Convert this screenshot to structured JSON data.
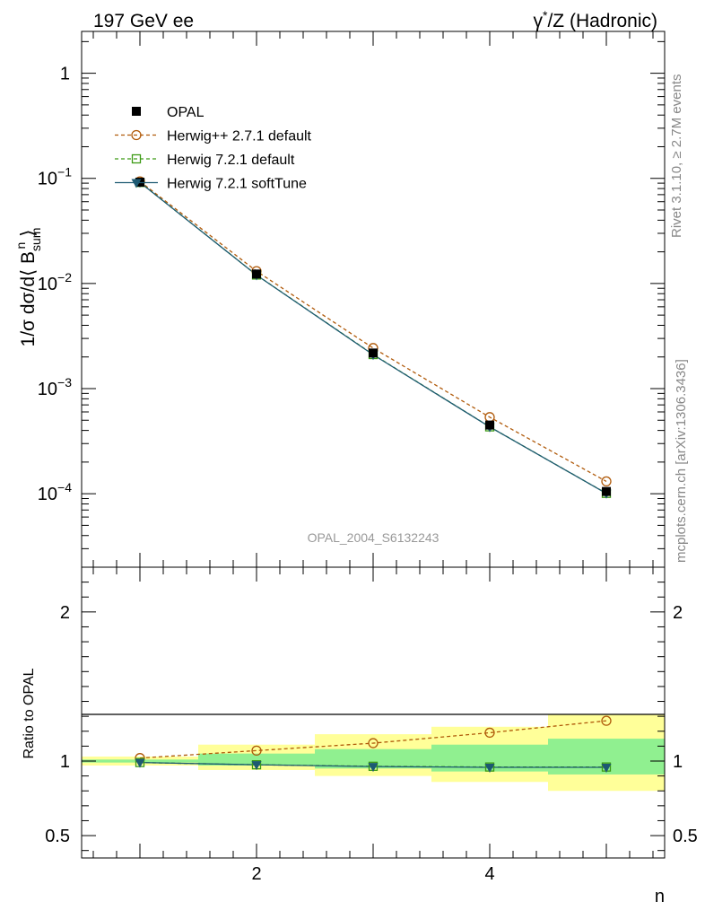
{
  "header": {
    "left_title": "197 GeV ee",
    "right_title_pre": "γ",
    "right_title_sup": "*",
    "right_title_post": "/Z (Hadronic)"
  },
  "side": {
    "rivet": "Rivet 3.1.10, ≥ 2.7M events",
    "mcplots": "mcplots.cern.ch [arXiv:1306.3436]"
  },
  "watermark": "OPAL_2004_S6132243",
  "chart_data": [
    {
      "type": "line",
      "panel": "main",
      "yscale": "log",
      "ylabel_parts": [
        "1/σ dσ/d⟨ B",
        "sum",
        "n",
        " ⟩"
      ],
      "xlim": [
        0.5,
        5.5
      ],
      "ylim": [
        2e-05,
        2.5
      ],
      "y_ticks": [
        {
          "v": 1,
          "base": "1",
          "exp": ""
        },
        {
          "v": 0.1,
          "base": "10",
          "exp": "−1"
        },
        {
          "v": 0.01,
          "base": "10",
          "exp": "−2"
        },
        {
          "v": 0.001,
          "base": "10",
          "exp": "−3"
        },
        {
          "v": 0.0001,
          "base": "10",
          "exp": "−4"
        }
      ],
      "x": [
        1,
        2,
        3,
        4,
        5
      ],
      "legend_position": "top-left",
      "series": [
        {
          "name": "OPAL",
          "marker": "filled-square",
          "color": "#000000",
          "line": "none",
          "values": [
            0.092,
            0.0123,
            0.00218,
            0.00045,
            0.000105
          ]
        },
        {
          "name": "Herwig++ 2.7.1 default",
          "marker": "open-circle",
          "color": "#b05a0a",
          "line": "dashed",
          "values": [
            0.0935,
            0.0131,
            0.00243,
            0.000535,
            0.000131
          ]
        },
        {
          "name": "Herwig 7.2.1 default",
          "marker": "open-square",
          "color": "#3c9a14",
          "line": "dashed",
          "values": [
            0.0915,
            0.01205,
            0.00211,
            0.000433,
            0.0001008
          ]
        },
        {
          "name": "Herwig 7.2.1 softTune",
          "marker": "filled-triangle-down",
          "color": "#1d5a72",
          "line": "solid",
          "values": [
            0.0915,
            0.01202,
            0.0021,
            0.000432,
            0.0001007
          ]
        }
      ]
    },
    {
      "type": "line",
      "panel": "ratio",
      "ylabel": "Ratio to OPAL",
      "xlabel": "n",
      "xlim": [
        0.5,
        5.5
      ],
      "ylim": [
        0.35,
        2.3
      ],
      "y_ticks": [
        2,
        1,
        0.5
      ],
      "y_tick_labels": [
        "2",
        "1",
        "0.5"
      ],
      "x_ticks": [
        2,
        4
      ],
      "x_tick_labels": [
        "2",
        "4"
      ],
      "x": [
        1,
        2,
        3,
        4,
        5
      ],
      "bands": [
        {
          "name": "stat",
          "color": "#90f090",
          "bins": [
            [
              0.5,
              1.5,
              0.99,
              1.01
            ],
            [
              1.5,
              2.5,
              0.97,
              1.05
            ],
            [
              2.5,
              3.5,
              0.95,
              1.08
            ],
            [
              3.5,
              4.5,
              0.93,
              1.11
            ],
            [
              4.5,
              5.5,
              0.91,
              1.15
            ]
          ]
        },
        {
          "name": "total",
          "color": "#ffff99",
          "bins": [
            [
              0.5,
              1.5,
              0.97,
              1.03
            ],
            [
              1.5,
              2.5,
              0.94,
              1.11
            ],
            [
              2.5,
              3.5,
              0.9,
              1.18
            ],
            [
              3.5,
              4.5,
              0.86,
              1.23
            ],
            [
              4.5,
              5.5,
              0.8,
              1.31
            ]
          ]
        }
      ],
      "series": [
        {
          "name": "Herwig++ 2.7.1 default",
          "marker": "open-circle",
          "color": "#b05a0a",
          "line": "dashed",
          "values": [
            1.02,
            1.07,
            1.12,
            1.19,
            1.27
          ]
        },
        {
          "name": "Herwig 7.2.1 default",
          "marker": "open-square",
          "color": "#3c9a14",
          "line": "dashed",
          "values": [
            0.99,
            0.975,
            0.965,
            0.96,
            0.96
          ]
        },
        {
          "name": "Herwig 7.2.1 softTune",
          "marker": "filled-triangle-down",
          "color": "#1d5a72",
          "line": "solid",
          "values": [
            0.99,
            0.975,
            0.963,
            0.958,
            0.958
          ]
        }
      ]
    }
  ]
}
